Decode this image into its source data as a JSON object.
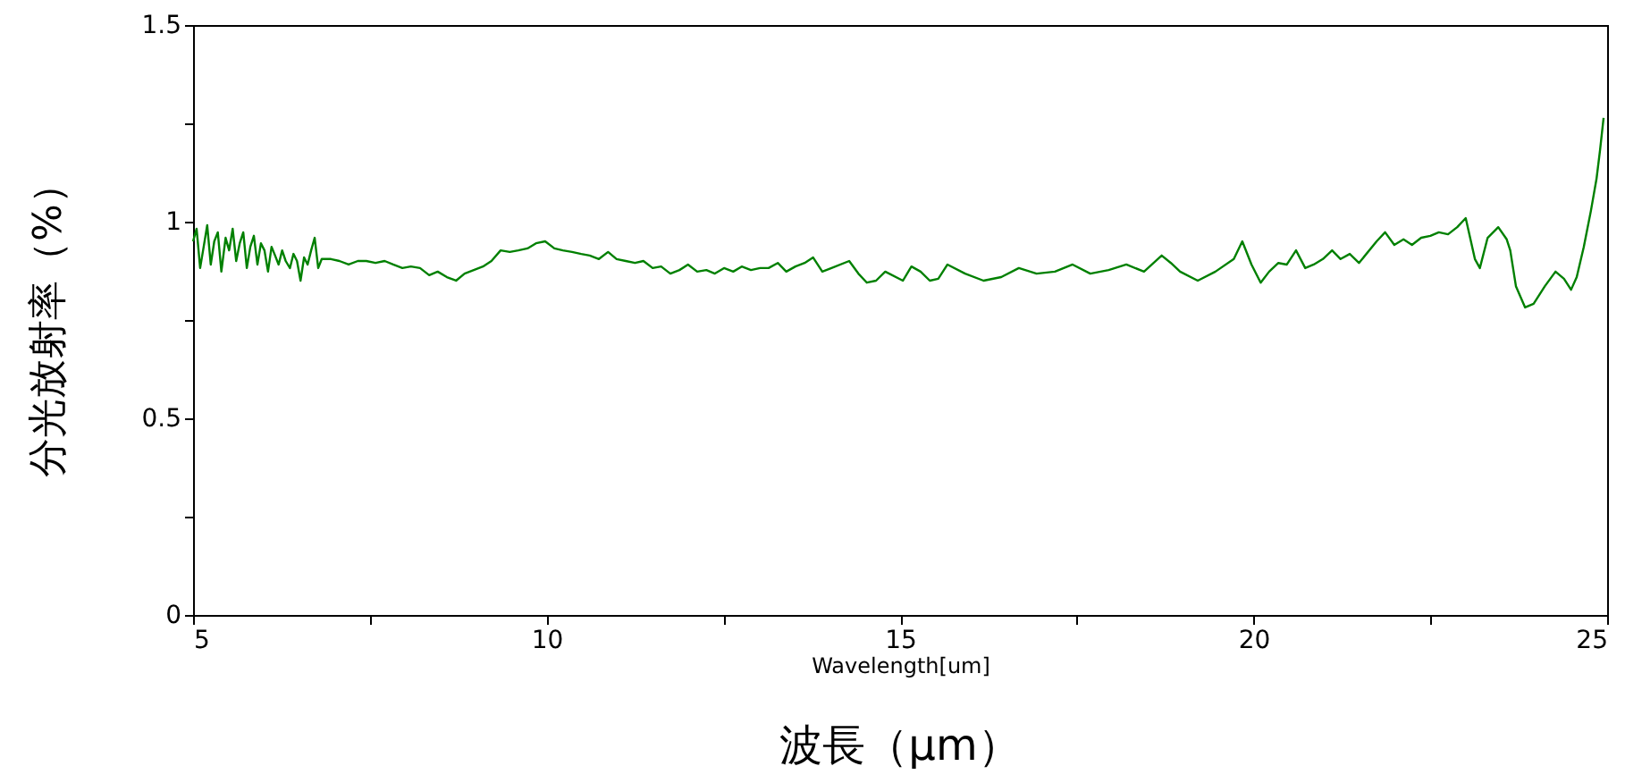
{
  "chart_data": {
    "type": "line",
    "xlabel": "Wavelength[um]",
    "ylabel": "分光放射率（%）",
    "annotations": [
      "波長（μm）"
    ],
    "xlim": [
      5,
      25
    ],
    "xticks": [
      5,
      {
        "value": 7.5,
        "label": null
      },
      10,
      {
        "value": 12.5,
        "label": null
      },
      15,
      {
        "value": 17.5,
        "label": null
      },
      20,
      {
        "value": 22.5,
        "label": null
      },
      25
    ],
    "ylim": [
      0,
      1.5
    ],
    "yticks": [
      0,
      {
        "value": 0.25,
        "label": null
      },
      0.5,
      {
        "value": 0.75,
        "label": null
      },
      1,
      {
        "value": 1.25,
        "label": null
      },
      1.5
    ],
    "grid": false,
    "series": [
      {
        "color": "#008000",
        "x": [
          5.0,
          5.05,
          5.1,
          5.15,
          5.2,
          5.25,
          5.3,
          5.35,
          5.4,
          5.46,
          5.51,
          5.56,
          5.61,
          5.66,
          5.71,
          5.76,
          5.81,
          5.86,
          5.91,
          5.96,
          6.01,
          6.06,
          6.11,
          6.16,
          6.21,
          6.26,
          6.31,
          6.37,
          6.42,
          6.47,
          6.52,
          6.57,
          6.62,
          6.67,
          6.72,
          6.77,
          6.82,
          6.95,
          7.07,
          7.2,
          7.33,
          7.45,
          7.58,
          7.71,
          7.83,
          7.96,
          8.08,
          8.21,
          8.34,
          8.46,
          8.59,
          8.72,
          8.84,
          8.97,
          9.1,
          9.22,
          9.35,
          9.48,
          9.6,
          9.73,
          9.85,
          9.98,
          10.11,
          10.23,
          10.36,
          10.49,
          10.61,
          10.74,
          10.87,
          10.99,
          11.12,
          11.25,
          11.37,
          11.5,
          11.62,
          11.75,
          11.88,
          12.0,
          12.13,
          12.26,
          12.38,
          12.51,
          12.64,
          12.76,
          12.89,
          13.02,
          13.14,
          13.27,
          13.39,
          13.52,
          13.65,
          13.77,
          13.9,
          14.03,
          14.28,
          14.41,
          14.53,
          14.66,
          14.79,
          15.04,
          15.16,
          15.29,
          15.42,
          15.54,
          15.67,
          15.92,
          16.18,
          16.43,
          16.68,
          16.93,
          17.19,
          17.44,
          17.69,
          17.95,
          18.2,
          18.45,
          18.7,
          18.83,
          18.96,
          19.21,
          19.46,
          19.72,
          19.84,
          19.97,
          20.1,
          20.22,
          20.35,
          20.47,
          20.6,
          20.73,
          20.85,
          20.98,
          21.11,
          21.23,
          21.36,
          21.49,
          21.74,
          21.86,
          21.99,
          22.12,
          22.24,
          22.37,
          22.5,
          22.62,
          22.75,
          22.88,
          23.0,
          23.13,
          23.2,
          23.31,
          23.46,
          23.58,
          23.63,
          23.71,
          23.84,
          23.96,
          24.12,
          24.27,
          24.39,
          24.49,
          24.57,
          24.67,
          24.77,
          24.85,
          24.9,
          24.95
        ],
        "values": [
          0.95,
          0.982,
          0.882,
          0.936,
          0.991,
          0.891,
          0.95,
          0.973,
          0.873,
          0.959,
          0.927,
          0.982,
          0.9,
          0.945,
          0.973,
          0.882,
          0.936,
          0.964,
          0.891,
          0.945,
          0.927,
          0.873,
          0.936,
          0.914,
          0.891,
          0.927,
          0.9,
          0.882,
          0.918,
          0.9,
          0.85,
          0.909,
          0.891,
          0.927,
          0.959,
          0.882,
          0.905,
          0.905,
          0.9,
          0.891,
          0.9,
          0.9,
          0.895,
          0.9,
          0.891,
          0.882,
          0.886,
          0.882,
          0.864,
          0.873,
          0.859,
          0.85,
          0.868,
          0.877,
          0.886,
          0.9,
          0.927,
          0.923,
          0.927,
          0.932,
          0.945,
          0.95,
          0.932,
          0.927,
          0.923,
          0.918,
          0.914,
          0.905,
          0.923,
          0.905,
          0.9,
          0.895,
          0.9,
          0.882,
          0.886,
          0.868,
          0.877,
          0.891,
          0.873,
          0.877,
          0.868,
          0.882,
          0.873,
          0.886,
          0.877,
          0.882,
          0.882,
          0.895,
          0.873,
          0.886,
          0.895,
          0.909,
          0.873,
          0.882,
          0.9,
          0.868,
          0.845,
          0.85,
          0.873,
          0.85,
          0.886,
          0.873,
          0.85,
          0.855,
          0.891,
          0.868,
          0.85,
          0.859,
          0.882,
          0.868,
          0.873,
          0.891,
          0.868,
          0.877,
          0.891,
          0.873,
          0.914,
          0.895,
          0.873,
          0.85,
          0.873,
          0.905,
          0.95,
          0.891,
          0.845,
          0.873,
          0.895,
          0.891,
          0.927,
          0.882,
          0.891,
          0.905,
          0.927,
          0.905,
          0.918,
          0.895,
          0.95,
          0.973,
          0.941,
          0.955,
          0.941,
          0.959,
          0.964,
          0.973,
          0.968,
          0.986,
          1.009,
          0.905,
          0.882,
          0.959,
          0.986,
          0.955,
          0.927,
          0.836,
          0.782,
          0.791,
          0.836,
          0.873,
          0.855,
          0.827,
          0.859,
          0.936,
          1.027,
          1.109,
          1.182,
          1.264
        ]
      }
    ]
  }
}
